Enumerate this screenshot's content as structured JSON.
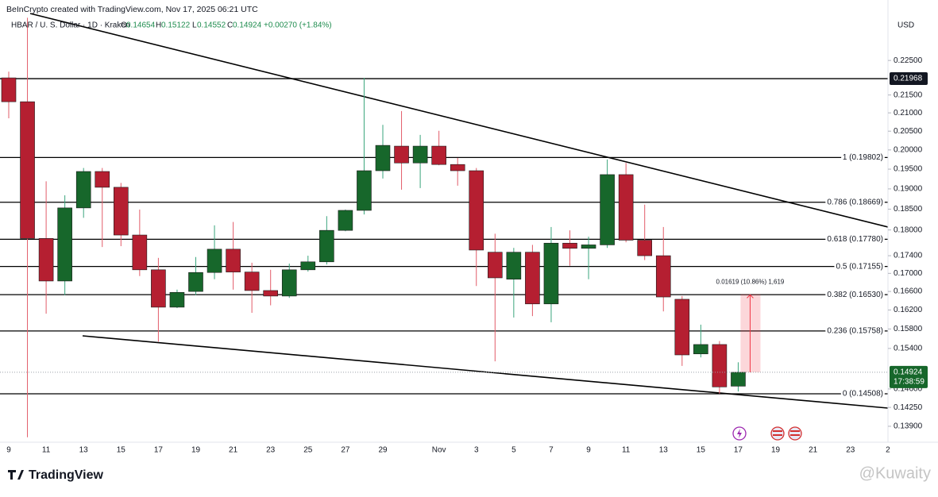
{
  "header": {
    "credit": "BeInCrypto created with TradingView.com, Nov 17, 2025 06:21 UTC",
    "symbol": "HBAR / U. S. Dollar · 1D · Kraken",
    "ohlc_labels": [
      "O",
      "H",
      "L",
      "C"
    ],
    "change": "+0.00270 (+1.84%)"
  },
  "chart_data": {
    "type": "candlestick",
    "currency": "USD",
    "categories": [
      "9",
      null,
      "11",
      null,
      "13",
      null,
      "15",
      null,
      "17",
      null,
      "19",
      null,
      "21",
      null,
      "23",
      null,
      "25",
      null,
      "27",
      null,
      "29",
      null,
      null,
      "Nov",
      null,
      "3",
      null,
      "5",
      null,
      "7",
      null,
      "9",
      null,
      "11",
      null,
      "13",
      null,
      "15",
      null,
      "17",
      null,
      "19",
      null,
      "21",
      null,
      "23",
      null,
      "2"
    ],
    "open": [
      0.2199,
      0.2131,
      0.178,
      0.1683,
      0.1853,
      0.1944,
      0.1904,
      0.1788,
      0.1708,
      0.1626,
      0.166,
      0.1702,
      0.1755,
      0.1703,
      0.1662,
      0.165,
      0.1708,
      0.1726,
      0.1799,
      0.1847,
      0.1946,
      0.201,
      0.1966,
      0.201,
      0.1962,
      0.1946,
      0.1748,
      0.1687,
      0.1748,
      0.1633,
      0.1769,
      0.1757,
      0.1765,
      0.1936,
      0.1776,
      0.174,
      0.1643,
      0.1529,
      0.1548,
      0.14654,
      null,
      null,
      null,
      null,
      null,
      null,
      null,
      null
    ],
    "high": [
      0.2217,
      0.238,
      0.1919,
      0.1884,
      0.1953,
      0.1953,
      0.1915,
      0.1849,
      0.1735,
      0.1664,
      0.1737,
      0.1811,
      0.1819,
      0.1724,
      0.1708,
      0.1722,
      0.174,
      0.1833,
      0.1849,
      0.2199,
      0.2067,
      0.2105,
      0.204,
      0.2051,
      0.1979,
      0.1953,
      0.1791,
      0.1758,
      0.1765,
      0.1807,
      0.1799,
      0.1784,
      0.1975,
      0.1966,
      0.1861,
      0.1807,
      0.165,
      0.1589,
      0.1555,
      0.15122,
      null,
      null,
      null,
      null,
      null,
      null,
      null,
      null
    ],
    "low": [
      0.2085,
      0.137,
      0.1612,
      0.1652,
      0.1829,
      0.176,
      0.1762,
      0.1694,
      0.1554,
      0.1624,
      0.1652,
      0.1687,
      0.1664,
      0.1614,
      0.163,
      0.1646,
      0.1704,
      0.172,
      0.1797,
      0.1837,
      0.1926,
      0.1898,
      0.1902,
      0.196,
      0.1908,
      0.1672,
      0.1514,
      0.1604,
      0.1607,
      0.1594,
      0.1717,
      0.1687,
      0.1758,
      0.1771,
      0.173,
      0.1617,
      0.1505,
      0.1522,
      0.1451,
      0.14552,
      null,
      null,
      null,
      null,
      null,
      null,
      null,
      null
    ],
    "close": [
      0.2131,
      0.178,
      0.1683,
      0.1853,
      0.1944,
      0.1904,
      0.1788,
      0.1708,
      0.1626,
      0.1658,
      0.1702,
      0.1755,
      0.1703,
      0.1662,
      0.165,
      0.1708,
      0.1726,
      0.1799,
      0.1847,
      0.1946,
      0.2012,
      0.1966,
      0.201,
      0.1962,
      0.1946,
      0.1753,
      0.169,
      0.1748,
      0.1633,
      0.1769,
      0.1757,
      0.1765,
      0.1936,
      0.1776,
      0.174,
      0.1648,
      0.1527,
      0.1548,
      0.1464,
      0.14924,
      null,
      null,
      null,
      null,
      null,
      null,
      null,
      null
    ],
    "up_color": "#17672b",
    "down_color": "#b51f31",
    "up_wick": "#3aa57c",
    "down_wick": "#e25c69",
    "log_scale": true,
    "ylim": [
      0.1364,
      0.2386
    ],
    "yticks": [
      {
        "value": 0.225,
        "label": "0.22500"
      },
      {
        "value": 0.215,
        "label": "0.21500"
      },
      {
        "value": 0.21,
        "label": "0.21000"
      },
      {
        "value": 0.205,
        "label": "0.20500"
      },
      {
        "value": 0.2,
        "label": "0.20000"
      },
      {
        "value": 0.195,
        "label": "0.19500"
      },
      {
        "value": 0.19,
        "label": "0.19000"
      },
      {
        "value": 0.185,
        "label": "0.18500"
      },
      {
        "value": 0.18,
        "label": "0.18000"
      },
      {
        "value": 0.174,
        "label": "0.17400"
      },
      {
        "value": 0.17,
        "label": "0.17000"
      },
      {
        "value": 0.166,
        "label": "0.16600"
      },
      {
        "value": 0.162,
        "label": "0.16200"
      },
      {
        "value": 0.158,
        "label": "0.15800"
      },
      {
        "value": 0.154,
        "label": "0.15400"
      },
      {
        "value": 0.146,
        "label": "0.14600"
      },
      {
        "value": 0.1425,
        "label": "0.14250"
      },
      {
        "value": 0.139,
        "label": "0.13900"
      }
    ],
    "levels": [
      {
        "value": 0.19802,
        "label": "1 (0.19802)"
      },
      {
        "value": 0.18669,
        "label": "0.786 (0.18669)"
      },
      {
        "value": 0.1778,
        "label": "0.618 (0.17780)"
      },
      {
        "value": 0.17155,
        "label": "0.5 (0.17155)"
      },
      {
        "value": 0.1653,
        "label": "0.382 (0.16530)"
      },
      {
        "value": 0.15758,
        "label": "0.236 (0.15758)"
      },
      {
        "value": 0.14508,
        "label": "0 (0.14508)"
      }
    ],
    "marked_price": 0.21968,
    "countdown": "17:38:59",
    "measure": {
      "from": 0.14924,
      "to": 0.16543,
      "label": "0.01619 (10.86%) 1,619"
    }
  },
  "footer": {
    "logo": "TradingView",
    "watermark": "@Kuwaity"
  }
}
